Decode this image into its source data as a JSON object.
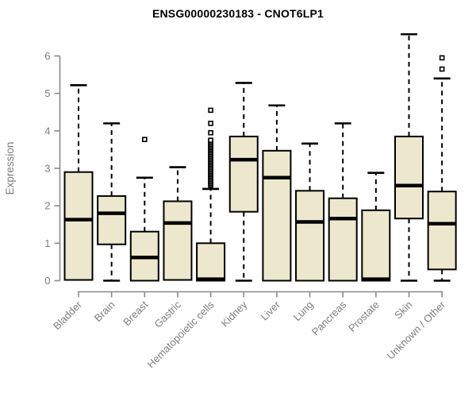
{
  "chart_data": {
    "type": "boxplot",
    "title": "ENSG00000230183 - CNOT6LP1",
    "xlabel": "",
    "ylabel": "Expression",
    "ylim": [
      0,
      6
    ],
    "yticks": [
      0,
      1,
      2,
      3,
      4,
      5,
      6
    ],
    "grid": false,
    "legend": "none",
    "colors": {
      "box_fill": "#EDE8CD",
      "box_stroke": "#000000",
      "median": "#000000",
      "whisker": "#000000",
      "axis_line": "#8a8a8a",
      "axis_text": "#7d7d7d",
      "title_text": "#000000",
      "background": "#ffffff"
    },
    "categories": [
      "Bladder",
      "Brain",
      "Breast",
      "Gastric",
      "Hematopoietic cells",
      "Kidney",
      "Liver",
      "Lung",
      "Pancreas",
      "Prostate",
      "Skin",
      "Unknown / Other"
    ],
    "boxes": [
      {
        "category": "Bladder",
        "whisker_low": 0.02,
        "q1": 0.02,
        "median": 1.63,
        "q3": 2.9,
        "whisker_high": 5.22,
        "outliers": []
      },
      {
        "category": "Brain",
        "whisker_low": 0.0,
        "q1": 0.97,
        "median": 1.8,
        "q3": 2.26,
        "whisker_high": 4.2,
        "outliers": []
      },
      {
        "category": "Breast",
        "whisker_low": 0.0,
        "q1": 0.0,
        "median": 0.62,
        "q3": 1.31,
        "whisker_high": 2.75,
        "outliers": [
          3.77
        ]
      },
      {
        "category": "Gastric",
        "whisker_low": 0.02,
        "q1": 0.02,
        "median": 1.54,
        "q3": 2.12,
        "whisker_high": 3.03,
        "outliers": []
      },
      {
        "category": "Hematopoietic cells",
        "whisker_low": 0.0,
        "q1": 0.0,
        "median": 0.04,
        "q3": 1.0,
        "whisker_high": 2.45,
        "outliers": [
          2.55,
          2.59,
          2.63,
          2.67,
          2.71,
          2.75,
          2.79,
          2.83,
          2.87,
          2.91,
          2.95,
          2.99,
          3.03,
          3.07,
          3.11,
          3.15,
          3.19,
          3.23,
          3.27,
          3.31,
          3.35,
          3.39,
          3.43,
          3.47,
          3.51,
          3.55,
          3.59,
          3.63,
          3.67,
          3.71,
          3.75,
          3.95,
          4.2,
          4.55
        ]
      },
      {
        "category": "Kidney",
        "whisker_low": 0.0,
        "q1": 1.84,
        "median": 3.23,
        "q3": 3.85,
        "whisker_high": 5.28,
        "outliers": []
      },
      {
        "category": "Liver",
        "whisker_low": 0.0,
        "q1": 0.0,
        "median": 2.75,
        "q3": 3.47,
        "whisker_high": 4.68,
        "outliers": []
      },
      {
        "category": "Lung",
        "whisker_low": 0.0,
        "q1": 0.0,
        "median": 1.57,
        "q3": 2.4,
        "whisker_high": 3.66,
        "outliers": []
      },
      {
        "category": "Pancreas",
        "whisker_low": 0.0,
        "q1": 0.0,
        "median": 1.66,
        "q3": 2.2,
        "whisker_high": 4.2,
        "outliers": []
      },
      {
        "category": "Prostate",
        "whisker_low": 0.0,
        "q1": 0.0,
        "median": 0.04,
        "q3": 1.88,
        "whisker_high": 2.88,
        "outliers": []
      },
      {
        "category": "Skin",
        "whisker_low": 0.0,
        "q1": 1.66,
        "median": 2.54,
        "q3": 3.85,
        "whisker_high": 6.58,
        "outliers": []
      },
      {
        "category": "Unknown / Other",
        "whisker_low": 0.0,
        "q1": 0.3,
        "median": 1.52,
        "q3": 2.38,
        "whisker_high": 5.4,
        "outliers": [
          5.65,
          5.95
        ]
      }
    ]
  }
}
